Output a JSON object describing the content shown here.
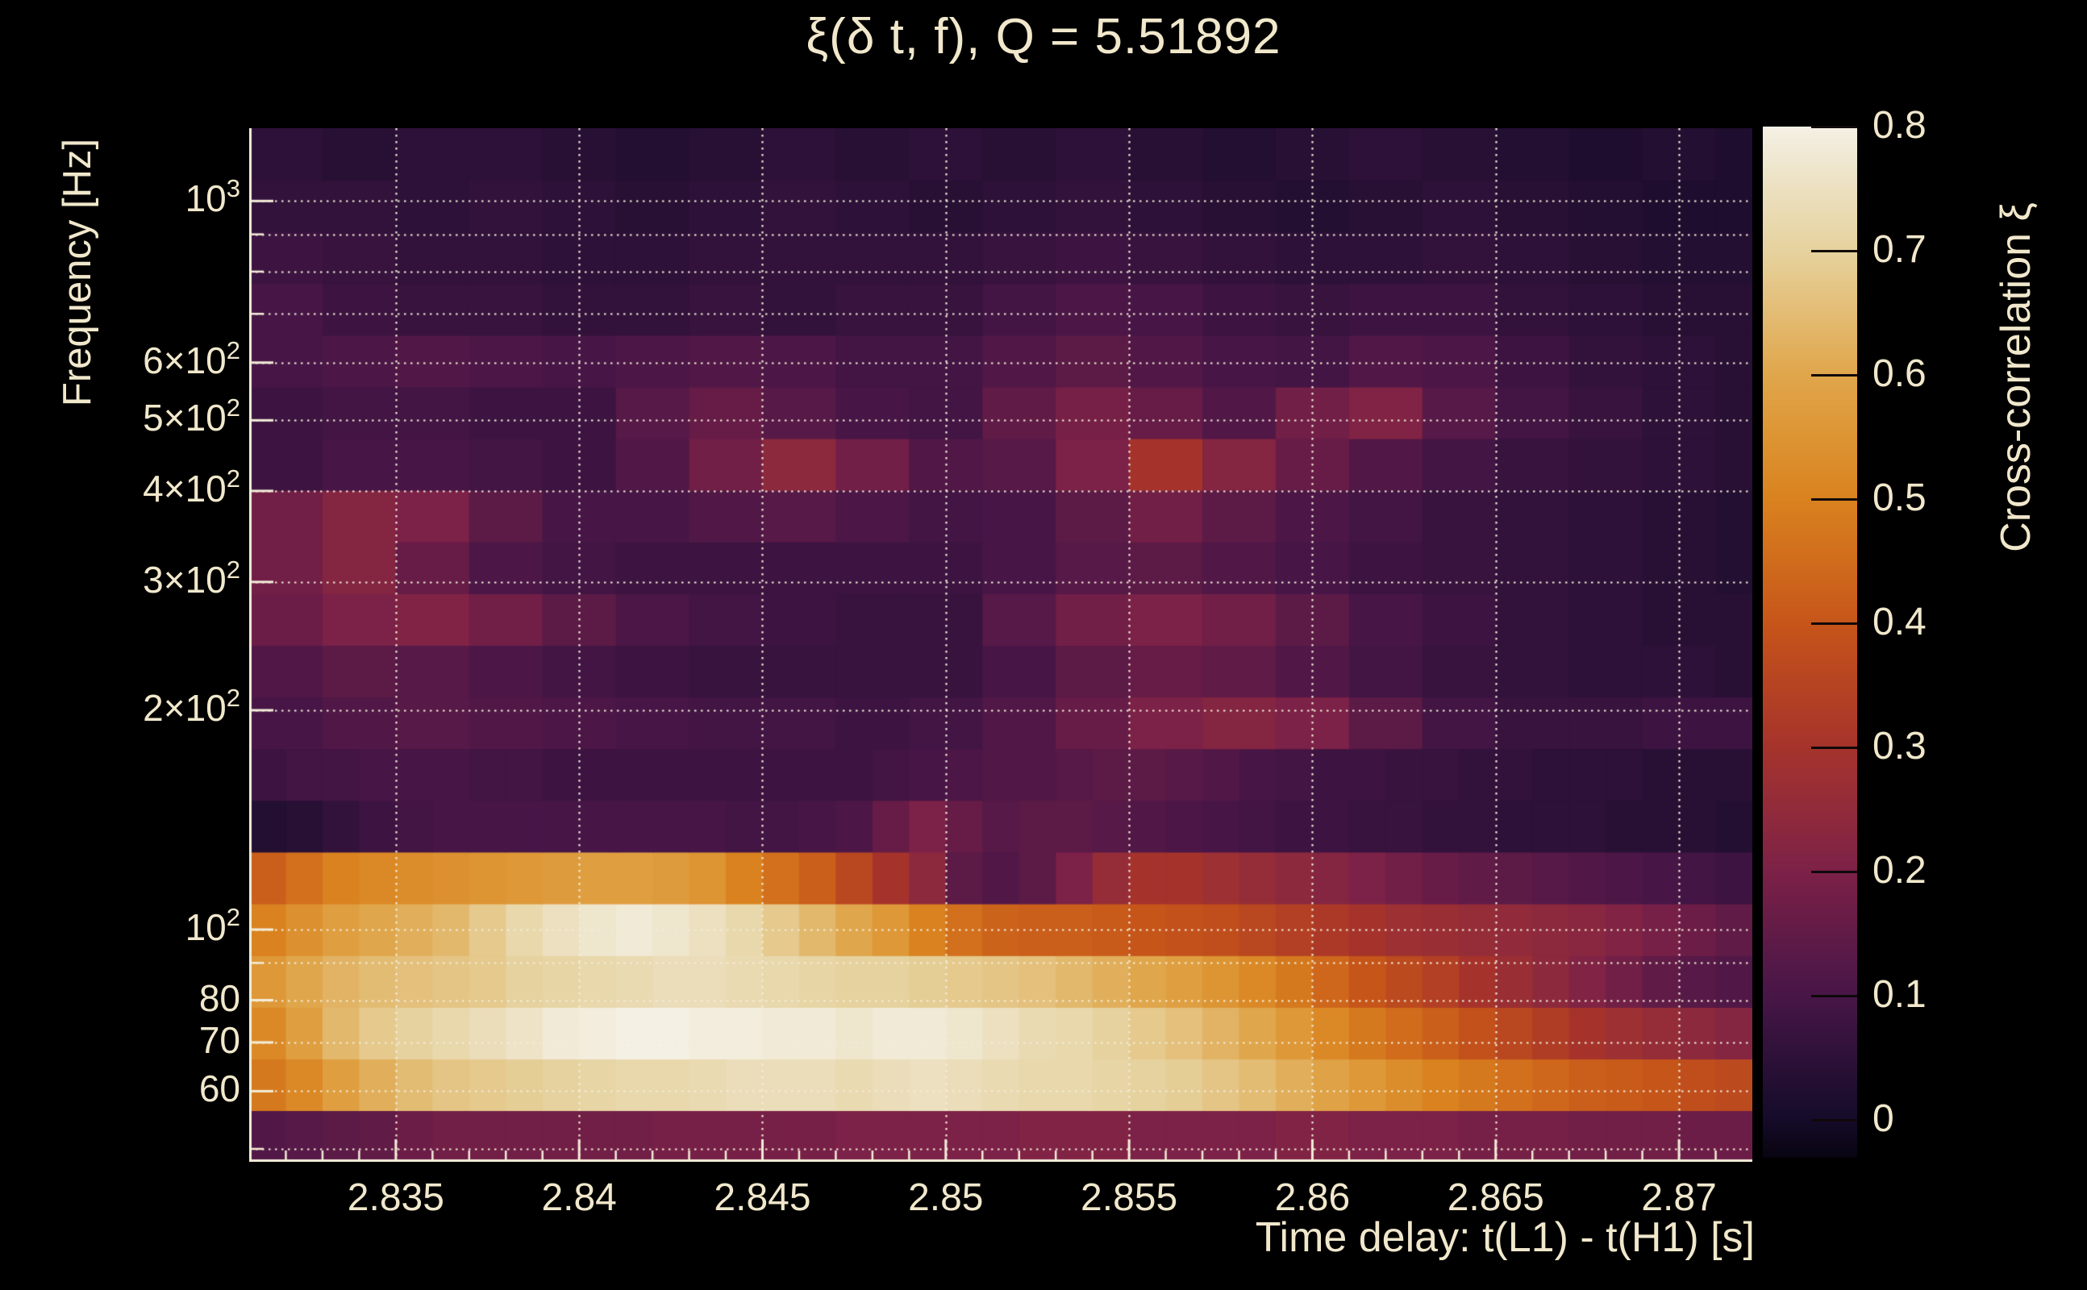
{
  "title": "ξ(δ t, f), Q = 5.51892",
  "colors": {
    "background": "#000000",
    "text_cream": "#F1E8CC",
    "grid_cream": "#F3EDD8",
    "tick_cream": "#F3EDD8",
    "colorbar_tick": "#10090a"
  },
  "chart_data": {
    "type": "heatmap",
    "title": "ξ(δ t, f), Q = 5.51892",
    "xlabel": "Time delay: t(L1) - t(H1) [s]",
    "ylabel": "Frequency [Hz]",
    "colorbar_label": "Cross-correlation ξ",
    "x_range": [
      2.831,
      2.872
    ],
    "y_range_hz": [
      48,
      1258.7
    ],
    "y_scale": "log",
    "value_range": [
      0,
      0.8
    ],
    "grid": true,
    "x_ticks_major": [
      {
        "t": 2.835,
        "label": "2.835"
      },
      {
        "t": 2.84,
        "label": "2.84"
      },
      {
        "t": 2.845,
        "label": "2.845"
      },
      {
        "t": 2.85,
        "label": "2.85"
      },
      {
        "t": 2.855,
        "label": "2.855"
      },
      {
        "t": 2.86,
        "label": "2.86"
      },
      {
        "t": 2.865,
        "label": "2.865"
      },
      {
        "t": 2.87,
        "label": "2.87"
      }
    ],
    "x_minor_step": 0.001,
    "y_ticks_major": [
      {
        "f": 1000,
        "main": "10",
        "sup": "3"
      },
      {
        "f": 600,
        "main": "6×10",
        "sup": "2"
      },
      {
        "f": 500,
        "main": "5×10",
        "sup": "2"
      },
      {
        "f": 400,
        "main": "4×10",
        "sup": "2"
      },
      {
        "f": 300,
        "main": "3×10",
        "sup": "2"
      },
      {
        "f": 200,
        "main": "2×10",
        "sup": "2"
      },
      {
        "f": 100,
        "main": "10",
        "sup": "2"
      },
      {
        "f": 80,
        "main": "80",
        "sup": ""
      },
      {
        "f": 70,
        "main": "70",
        "sup": ""
      },
      {
        "f": 60,
        "main": "60",
        "sup": ""
      }
    ],
    "y_ticks_minor": [
      900,
      800,
      700,
      90,
      50
    ],
    "gridlines_y_hz": [
      50,
      60,
      70,
      80,
      90,
      100,
      200,
      300,
      400,
      500,
      600,
      700,
      800,
      900,
      1000
    ],
    "colorbar_ticks": [
      {
        "v": 0.8,
        "label": "0.8"
      },
      {
        "v": 0.7,
        "label": "0.7"
      },
      {
        "v": 0.6,
        "label": "0.6"
      },
      {
        "v": 0.5,
        "label": "0.5"
      },
      {
        "v": 0.4,
        "label": "0.4"
      },
      {
        "v": 0.3,
        "label": "0.3"
      },
      {
        "v": 0.2,
        "label": "0.2"
      },
      {
        "v": 0.1,
        "label": "0.1"
      },
      {
        "v": 0.0,
        "label": "0"
      }
    ],
    "colorbar_min_shown": -0.03,
    "colormap_stops": [
      [
        -0.05,
        "#000000"
      ],
      [
        0.0,
        "#150B29"
      ],
      [
        0.05,
        "#2D1138"
      ],
      [
        0.1,
        "#471647"
      ],
      [
        0.15,
        "#611B47"
      ],
      [
        0.2,
        "#7C2147"
      ],
      [
        0.25,
        "#912B3B"
      ],
      [
        0.3,
        "#A5332C"
      ],
      [
        0.35,
        "#B64322"
      ],
      [
        0.4,
        "#C6551A"
      ],
      [
        0.45,
        "#D06C1C"
      ],
      [
        0.5,
        "#D9821F"
      ],
      [
        0.55,
        "#DD9433"
      ],
      [
        0.6,
        "#E0A64B"
      ],
      [
        0.65,
        "#E3BC74"
      ],
      [
        0.7,
        "#E6D29E"
      ],
      [
        0.75,
        "#ECE0C0"
      ],
      [
        0.8,
        "#F4F0E4"
      ]
    ],
    "columns": {
      "t_start": 2.831,
      "dt": 0.001,
      "count": 41
    },
    "rows": [
      {
        "f_low": 48.0,
        "f_high": 56.5,
        "bin_ms": 1
      },
      {
        "f_low": 56.5,
        "f_high": 66.5,
        "bin_ms": 1
      },
      {
        "f_low": 66.5,
        "f_high": 78.3,
        "bin_ms": 1
      },
      {
        "f_low": 78.3,
        "f_high": 92.2,
        "bin_ms": 1
      },
      {
        "f_low": 92.2,
        "f_high": 108.6,
        "bin_ms": 1
      },
      {
        "f_low": 108.6,
        "f_high": 127.9,
        "bin_ms": 1
      },
      {
        "f_low": 127.9,
        "f_high": 150.6,
        "bin_ms": 1
      },
      {
        "f_low": 150.6,
        "f_high": 177.3,
        "bin_ms": 1
      },
      {
        "f_low": 177.3,
        "f_high": 208.8,
        "bin_ms": 2
      },
      {
        "f_low": 208.8,
        "f_high": 245.8,
        "bin_ms": 2
      },
      {
        "f_low": 245.8,
        "f_high": 289.4,
        "bin_ms": 2
      },
      {
        "f_low": 289.4,
        "f_high": 340.8,
        "bin_ms": 2
      },
      {
        "f_low": 340.8,
        "f_high": 401.2,
        "bin_ms": 2
      },
      {
        "f_low": 401.2,
        "f_high": 472.4,
        "bin_ms": 2
      },
      {
        "f_low": 472.4,
        "f_high": 556.2,
        "bin_ms": 2
      },
      {
        "f_low": 556.2,
        "f_high": 654.9,
        "bin_ms": 2
      },
      {
        "f_low": 654.9,
        "f_high": 771.1,
        "bin_ms": 2
      },
      {
        "f_low": 771.1,
        "f_high": 907.9,
        "bin_ms": 2
      },
      {
        "f_low": 907.9,
        "f_high": 1069.0,
        "bin_ms": 2
      },
      {
        "f_low": 1069.0,
        "f_high": 1258.7,
        "bin_ms": 2
      }
    ],
    "values": [
      [
        0.12,
        0.13,
        0.14,
        0.15,
        0.17,
        0.18,
        0.18,
        0.18,
        0.18,
        0.18,
        0.18,
        0.19,
        0.19,
        0.19,
        0.19,
        0.19,
        0.2,
        0.2,
        0.2,
        0.2,
        0.2,
        0.21,
        0.21,
        0.21,
        0.2,
        0.2,
        0.2,
        0.2,
        0.21,
        0.21,
        0.2,
        0.2,
        0.2,
        0.19,
        0.19,
        0.19,
        0.18,
        0.18,
        0.18,
        0.17,
        0.17
      ],
      [
        0.48,
        0.52,
        0.58,
        0.62,
        0.65,
        0.67,
        0.68,
        0.69,
        0.7,
        0.71,
        0.72,
        0.72,
        0.73,
        0.74,
        0.74,
        0.74,
        0.73,
        0.74,
        0.75,
        0.74,
        0.73,
        0.72,
        0.72,
        0.71,
        0.7,
        0.69,
        0.67,
        0.65,
        0.62,
        0.59,
        0.56,
        0.53,
        0.5,
        0.48,
        0.46,
        0.44,
        0.42,
        0.41,
        0.4,
        0.38,
        0.37
      ],
      [
        0.52,
        0.58,
        0.64,
        0.68,
        0.7,
        0.72,
        0.74,
        0.76,
        0.78,
        0.79,
        0.8,
        0.8,
        0.79,
        0.79,
        0.78,
        0.78,
        0.77,
        0.78,
        0.78,
        0.77,
        0.75,
        0.73,
        0.72,
        0.7,
        0.68,
        0.66,
        0.63,
        0.6,
        0.56,
        0.52,
        0.48,
        0.45,
        0.42,
        0.39,
        0.36,
        0.33,
        0.3,
        0.28,
        0.26,
        0.24,
        0.22
      ],
      [
        0.56,
        0.6,
        0.63,
        0.65,
        0.66,
        0.67,
        0.68,
        0.7,
        0.71,
        0.72,
        0.73,
        0.74,
        0.74,
        0.73,
        0.72,
        0.71,
        0.7,
        0.7,
        0.69,
        0.68,
        0.67,
        0.66,
        0.64,
        0.62,
        0.6,
        0.58,
        0.55,
        0.52,
        0.48,
        0.44,
        0.4,
        0.37,
        0.34,
        0.3,
        0.27,
        0.24,
        0.21,
        0.18,
        0.15,
        0.13,
        0.12
      ],
      [
        0.5,
        0.54,
        0.58,
        0.6,
        0.62,
        0.64,
        0.68,
        0.72,
        0.75,
        0.77,
        0.78,
        0.77,
        0.75,
        0.72,
        0.68,
        0.64,
        0.6,
        0.56,
        0.5,
        0.46,
        0.43,
        0.42,
        0.42,
        0.41,
        0.4,
        0.39,
        0.38,
        0.36,
        0.34,
        0.32,
        0.3,
        0.28,
        0.27,
        0.26,
        0.25,
        0.24,
        0.23,
        0.21,
        0.19,
        0.17,
        0.15
      ],
      [
        0.42,
        0.46,
        0.5,
        0.52,
        0.53,
        0.54,
        0.55,
        0.56,
        0.57,
        0.58,
        0.58,
        0.57,
        0.55,
        0.5,
        0.46,
        0.42,
        0.36,
        0.3,
        0.24,
        0.14,
        0.12,
        0.14,
        0.2,
        0.26,
        0.3,
        0.3,
        0.28,
        0.26,
        0.24,
        0.22,
        0.2,
        0.18,
        0.16,
        0.15,
        0.14,
        0.13,
        0.12,
        0.11,
        0.1,
        0.09,
        0.08
      ],
      [
        0.03,
        0.04,
        0.06,
        0.08,
        0.09,
        0.1,
        0.1,
        0.1,
        0.1,
        0.1,
        0.1,
        0.1,
        0.1,
        0.09,
        0.09,
        0.1,
        0.11,
        0.16,
        0.2,
        0.16,
        0.13,
        0.14,
        0.14,
        0.13,
        0.12,
        0.11,
        0.1,
        0.09,
        0.08,
        0.08,
        0.07,
        0.07,
        0.06,
        0.06,
        0.05,
        0.05,
        0.05,
        0.04,
        0.04,
        0.04,
        0.03
      ],
      [
        0.08,
        0.09,
        0.09,
        0.1,
        0.1,
        0.1,
        0.09,
        0.09,
        0.08,
        0.08,
        0.08,
        0.08,
        0.08,
        0.08,
        0.08,
        0.08,
        0.08,
        0.09,
        0.1,
        0.11,
        0.12,
        0.12,
        0.13,
        0.14,
        0.14,
        0.13,
        0.12,
        0.1,
        0.09,
        0.08,
        0.08,
        0.07,
        0.07,
        0.06,
        0.06,
        0.05,
        0.05,
        0.05,
        0.04,
        0.04,
        0.04
      ],
      [
        0.1,
        0.1,
        0.12,
        0.12,
        0.13,
        0.13,
        0.12,
        0.12,
        0.11,
        0.11,
        0.1,
        0.1,
        0.09,
        0.09,
        0.09,
        0.09,
        0.08,
        0.08,
        0.09,
        0.09,
        0.12,
        0.12,
        0.16,
        0.16,
        0.2,
        0.2,
        0.22,
        0.22,
        0.2,
        0.2,
        0.14,
        0.14,
        0.09,
        0.09,
        0.07,
        0.07,
        0.07,
        0.07,
        0.08,
        0.08,
        0.08
      ],
      [
        0.12,
        0.12,
        0.14,
        0.14,
        0.13,
        0.13,
        0.11,
        0.11,
        0.09,
        0.09,
        0.08,
        0.08,
        0.07,
        0.07,
        0.07,
        0.07,
        0.07,
        0.07,
        0.07,
        0.07,
        0.1,
        0.1,
        0.14,
        0.14,
        0.16,
        0.16,
        0.15,
        0.15,
        0.12,
        0.12,
        0.09,
        0.09,
        0.07,
        0.07,
        0.06,
        0.06,
        0.05,
        0.05,
        0.05,
        0.05,
        0.04
      ],
      [
        0.17,
        0.17,
        0.2,
        0.2,
        0.21,
        0.21,
        0.18,
        0.18,
        0.14,
        0.14,
        0.11,
        0.11,
        0.09,
        0.09,
        0.08,
        0.08,
        0.07,
        0.07,
        0.07,
        0.07,
        0.13,
        0.13,
        0.18,
        0.18,
        0.2,
        0.2,
        0.18,
        0.18,
        0.14,
        0.14,
        0.1,
        0.1,
        0.08,
        0.08,
        0.06,
        0.06,
        0.05,
        0.05,
        0.04,
        0.04,
        0.04
      ],
      [
        0.18,
        0.18,
        0.22,
        0.22,
        0.16,
        0.16,
        0.11,
        0.11,
        0.09,
        0.09,
        0.08,
        0.08,
        0.08,
        0.08,
        0.08,
        0.08,
        0.08,
        0.08,
        0.08,
        0.08,
        0.1,
        0.1,
        0.13,
        0.13,
        0.14,
        0.14,
        0.12,
        0.12,
        0.1,
        0.1,
        0.08,
        0.08,
        0.07,
        0.07,
        0.06,
        0.06,
        0.05,
        0.05,
        0.04,
        0.04,
        0.03
      ],
      [
        0.18,
        0.18,
        0.22,
        0.22,
        0.2,
        0.2,
        0.14,
        0.14,
        0.1,
        0.1,
        0.1,
        0.1,
        0.12,
        0.12,
        0.13,
        0.13,
        0.11,
        0.11,
        0.09,
        0.09,
        0.1,
        0.1,
        0.14,
        0.14,
        0.18,
        0.18,
        0.14,
        0.14,
        0.11,
        0.11,
        0.09,
        0.09,
        0.07,
        0.07,
        0.06,
        0.06,
        0.05,
        0.05,
        0.04,
        0.04,
        0.03
      ],
      [
        0.08,
        0.08,
        0.1,
        0.1,
        0.1,
        0.1,
        0.09,
        0.09,
        0.08,
        0.08,
        0.12,
        0.12,
        0.18,
        0.18,
        0.24,
        0.24,
        0.18,
        0.18,
        0.12,
        0.12,
        0.13,
        0.13,
        0.2,
        0.2,
        0.3,
        0.3,
        0.22,
        0.22,
        0.16,
        0.16,
        0.12,
        0.12,
        0.09,
        0.09,
        0.07,
        0.07,
        0.06,
        0.06,
        0.05,
        0.05,
        0.04
      ],
      [
        0.08,
        0.08,
        0.09,
        0.09,
        0.09,
        0.09,
        0.08,
        0.08,
        0.08,
        0.08,
        0.13,
        0.13,
        0.16,
        0.16,
        0.13,
        0.13,
        0.1,
        0.1,
        0.09,
        0.09,
        0.15,
        0.15,
        0.19,
        0.19,
        0.16,
        0.16,
        0.12,
        0.12,
        0.18,
        0.18,
        0.21,
        0.21,
        0.13,
        0.13,
        0.09,
        0.09,
        0.07,
        0.07,
        0.05,
        0.05,
        0.04
      ],
      [
        0.1,
        0.1,
        0.11,
        0.11,
        0.12,
        0.12,
        0.11,
        0.11,
        0.1,
        0.1,
        0.11,
        0.11,
        0.12,
        0.12,
        0.11,
        0.11,
        0.09,
        0.09,
        0.09,
        0.09,
        0.12,
        0.12,
        0.14,
        0.14,
        0.12,
        0.12,
        0.1,
        0.1,
        0.09,
        0.09,
        0.12,
        0.12,
        0.11,
        0.11,
        0.08,
        0.08,
        0.06,
        0.06,
        0.05,
        0.05,
        0.04
      ],
      [
        0.1,
        0.1,
        0.08,
        0.08,
        0.07,
        0.07,
        0.07,
        0.07,
        0.06,
        0.06,
        0.06,
        0.06,
        0.07,
        0.07,
        0.06,
        0.06,
        0.07,
        0.07,
        0.07,
        0.07,
        0.09,
        0.09,
        0.11,
        0.11,
        0.1,
        0.1,
        0.08,
        0.08,
        0.07,
        0.07,
        0.08,
        0.08,
        0.08,
        0.08,
        0.06,
        0.06,
        0.05,
        0.05,
        0.04,
        0.04,
        0.04
      ],
      [
        0.08,
        0.08,
        0.07,
        0.07,
        0.06,
        0.06,
        0.06,
        0.06,
        0.05,
        0.05,
        0.05,
        0.05,
        0.06,
        0.06,
        0.06,
        0.06,
        0.06,
        0.06,
        0.06,
        0.06,
        0.07,
        0.07,
        0.08,
        0.08,
        0.07,
        0.07,
        0.06,
        0.06,
        0.05,
        0.05,
        0.05,
        0.05,
        0.06,
        0.06,
        0.05,
        0.05,
        0.04,
        0.04,
        0.03,
        0.03,
        0.03
      ],
      [
        0.06,
        0.06,
        0.06,
        0.06,
        0.05,
        0.05,
        0.06,
        0.06,
        0.05,
        0.05,
        0.04,
        0.04,
        0.05,
        0.05,
        0.06,
        0.06,
        0.05,
        0.05,
        0.04,
        0.04,
        0.05,
        0.05,
        0.06,
        0.06,
        0.05,
        0.05,
        0.04,
        0.04,
        0.03,
        0.03,
        0.04,
        0.04,
        0.05,
        0.05,
        0.04,
        0.04,
        0.03,
        0.03,
        0.02,
        0.02,
        0.02
      ],
      [
        0.05,
        0.05,
        0.04,
        0.04,
        0.05,
        0.05,
        0.05,
        0.05,
        0.04,
        0.04,
        0.03,
        0.03,
        0.04,
        0.04,
        0.05,
        0.05,
        0.04,
        0.04,
        0.05,
        0.05,
        0.04,
        0.04,
        0.05,
        0.05,
        0.04,
        0.04,
        0.03,
        0.03,
        0.04,
        0.04,
        0.05,
        0.05,
        0.04,
        0.04,
        0.03,
        0.03,
        0.02,
        0.02,
        0.03,
        0.03,
        0.02
      ]
    ]
  }
}
